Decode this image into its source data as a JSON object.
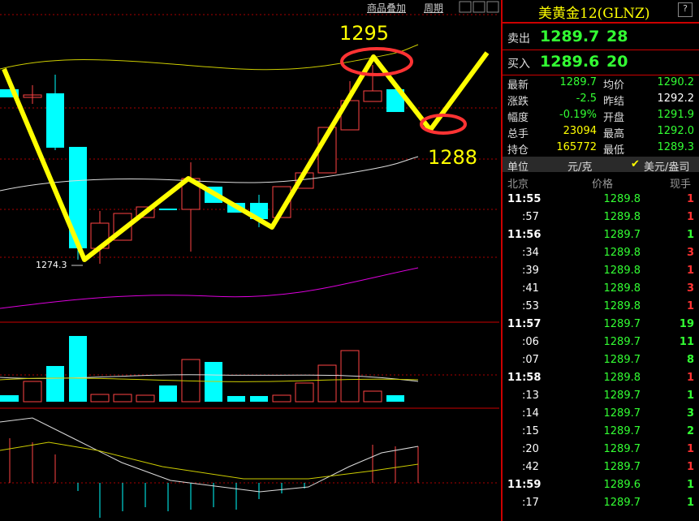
{
  "toolbar": {
    "overlay": "商品叠加",
    "period": "周期"
  },
  "annotations": {
    "high": "1295",
    "target": "1288",
    "low": "1274.3"
  },
  "quote": {
    "title": "美黄金12(GLNZ)",
    "ask": {
      "label": "卖出",
      "price": "1289.7",
      "volume": "28"
    },
    "bid": {
      "label": "买入",
      "price": "1289.6",
      "volume": "20"
    }
  },
  "stats": [
    {
      "l1": "最新",
      "v1": "1289.7",
      "c1": "#3f3",
      "l2": "均价",
      "v2": "1290.2",
      "c2": "#3f3"
    },
    {
      "l1": "涨跌",
      "v1": "-2.5",
      "c1": "#3f3",
      "l2": "昨结",
      "v2": "1292.2",
      "c2": "#fff"
    },
    {
      "l1": "幅度",
      "v1": "-0.19%",
      "c1": "#3f3",
      "l2": "开盘",
      "v2": "1291.9",
      "c2": "#3f3"
    },
    {
      "l1": "总手",
      "v1": "23094",
      "c1": "#ff0",
      "l2": "最高",
      "v2": "1292.0",
      "c2": "#3f3"
    },
    {
      "l1": "持仓",
      "v1": "165772",
      "c1": "#ff0",
      "l2": "最低",
      "v2": "1289.3",
      "c2": "#3f3"
    }
  ],
  "unit": {
    "label": "单位",
    "cny": "元/克",
    "usd": "美元/盎司"
  },
  "ticks": {
    "header": [
      "北京",
      "价格",
      "现手"
    ],
    "rows": [
      {
        "time": "11:55",
        "price": "1289.8",
        "qty": "1",
        "qty_color": "#f33"
      },
      {
        "time": ":57",
        "price": "1289.8",
        "qty": "1",
        "qty_color": "#f33"
      },
      {
        "time": "11:56",
        "price": "1289.7",
        "qty": "1",
        "qty_color": "#3f3"
      },
      {
        "time": ":34",
        "price": "1289.8",
        "qty": "3",
        "qty_color": "#f33"
      },
      {
        "time": ":39",
        "price": "1289.8",
        "qty": "1",
        "qty_color": "#f33"
      },
      {
        "time": ":41",
        "price": "1289.8",
        "qty": "3",
        "qty_color": "#f33"
      },
      {
        "time": ":53",
        "price": "1289.8",
        "qty": "1",
        "qty_color": "#f33"
      },
      {
        "time": "11:57",
        "price": "1289.7",
        "qty": "19",
        "qty_color": "#3f3"
      },
      {
        "time": ":06",
        "price": "1289.7",
        "qty": "11",
        "qty_color": "#3f3"
      },
      {
        "time": ":07",
        "price": "1289.7",
        "qty": "8",
        "qty_color": "#3f3"
      },
      {
        "time": "11:58",
        "price": "1289.8",
        "qty": "1",
        "qty_color": "#f33"
      },
      {
        "time": ":13",
        "price": "1289.7",
        "qty": "1",
        "qty_color": "#3f3"
      },
      {
        "time": ":14",
        "price": "1289.7",
        "qty": "3",
        "qty_color": "#3f3"
      },
      {
        "time": ":15",
        "price": "1289.7",
        "qty": "2",
        "qty_color": "#3f3"
      },
      {
        "time": ":20",
        "price": "1289.7",
        "qty": "1",
        "qty_color": "#f33"
      },
      {
        "time": ":42",
        "price": "1289.7",
        "qty": "1",
        "qty_color": "#f33"
      },
      {
        "time": "11:59",
        "price": "1289.6",
        "qty": "1",
        "qty_color": "#3f3"
      },
      {
        "time": ":17",
        "price": "1289.7",
        "qty": "1",
        "qty_color": "#3f3"
      }
    ]
  }
}
